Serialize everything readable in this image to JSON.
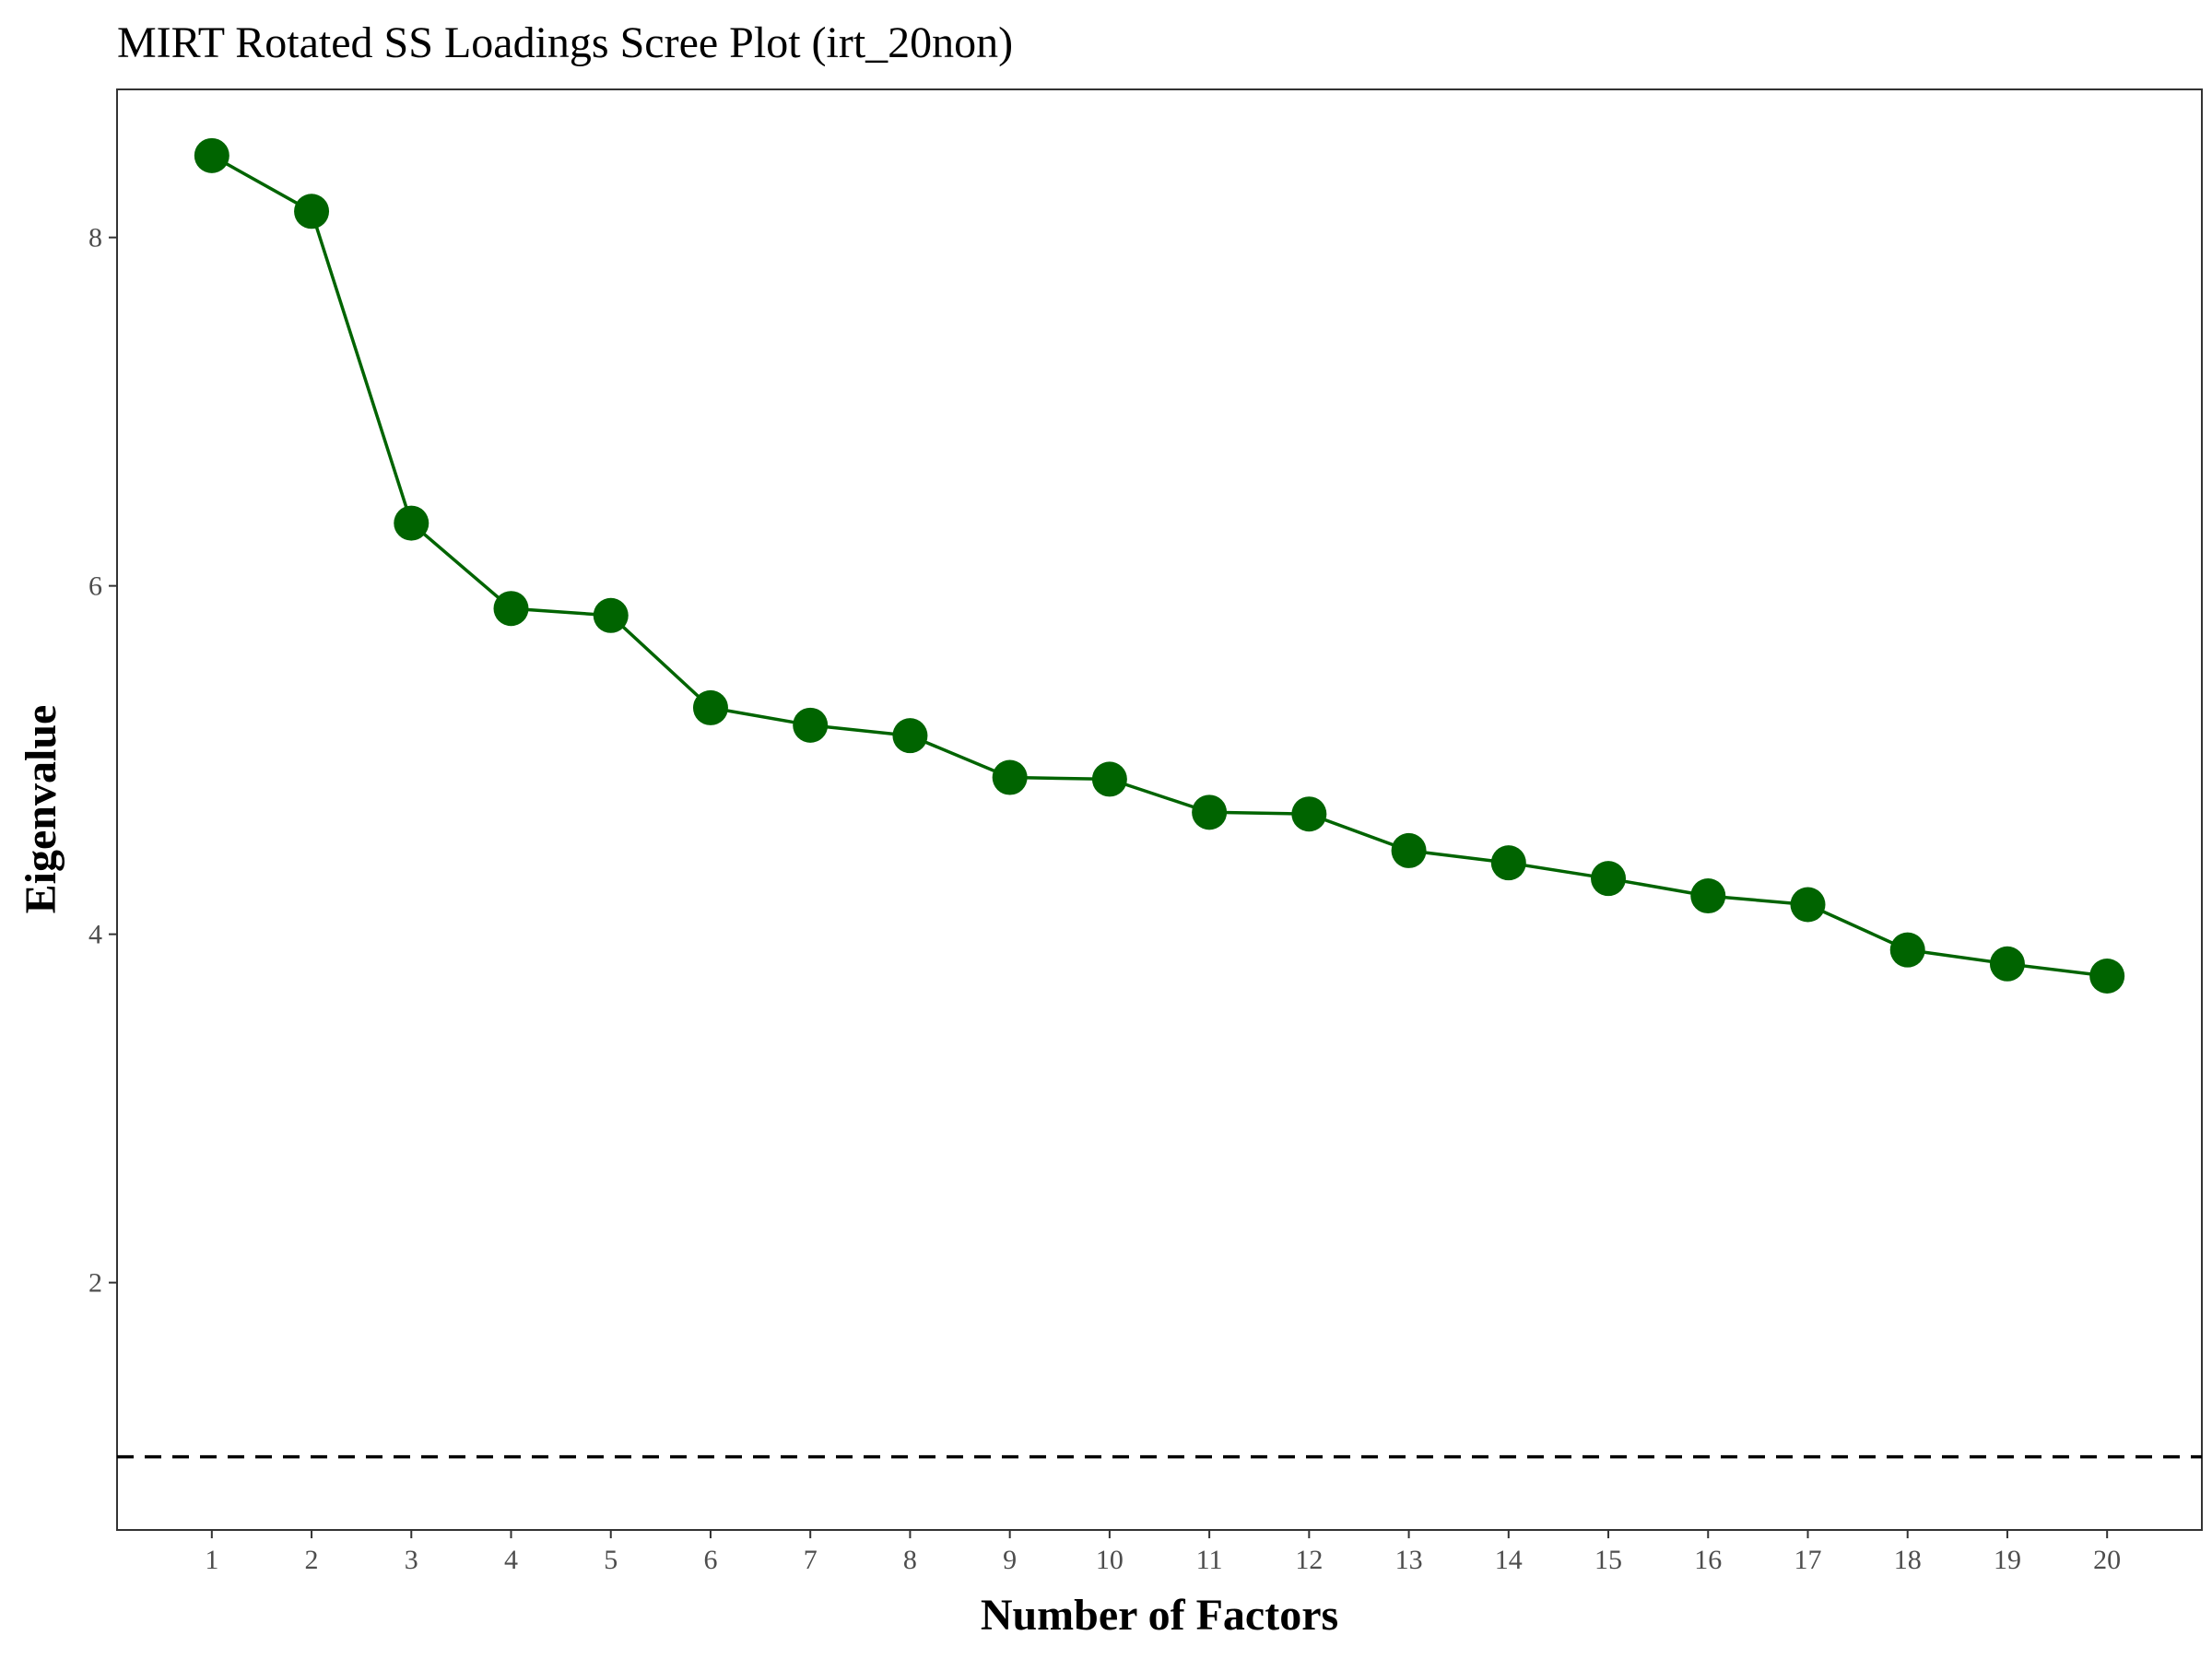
{
  "chart_data": {
    "type": "line",
    "title": "MIRT Rotated SS Loadings Scree Plot (irt_20non)",
    "xlabel": "Number of Factors",
    "ylabel": "Eigenvalue",
    "x": [
      1,
      2,
      3,
      4,
      5,
      6,
      7,
      8,
      9,
      10,
      11,
      12,
      13,
      14,
      15,
      16,
      17,
      18,
      19,
      20
    ],
    "values": [
      8.47,
      8.15,
      6.36,
      5.87,
      5.83,
      5.3,
      5.2,
      5.14,
      4.9,
      4.89,
      4.7,
      4.69,
      4.48,
      4.41,
      4.32,
      4.22,
      4.17,
      3.91,
      3.83,
      3.76
    ],
    "xlim": [
      0.05,
      20.95
    ],
    "ylim": [
      0.58,
      8.85
    ],
    "x_ticks": [
      "1",
      "2",
      "3",
      "4",
      "5",
      "6",
      "7",
      "8",
      "9",
      "10",
      "11",
      "12",
      "13",
      "14",
      "15",
      "16",
      "17",
      "18",
      "19",
      "20"
    ],
    "y_ticks": [
      "2",
      "4",
      "6",
      "8"
    ],
    "reference_line": {
      "y": 1,
      "style": "dashed",
      "color": "#000000"
    },
    "grid": false,
    "colors": {
      "series": "#006400",
      "reference": "#000000",
      "frame": "#333333",
      "tick_text": "#4d4d4d"
    }
  }
}
